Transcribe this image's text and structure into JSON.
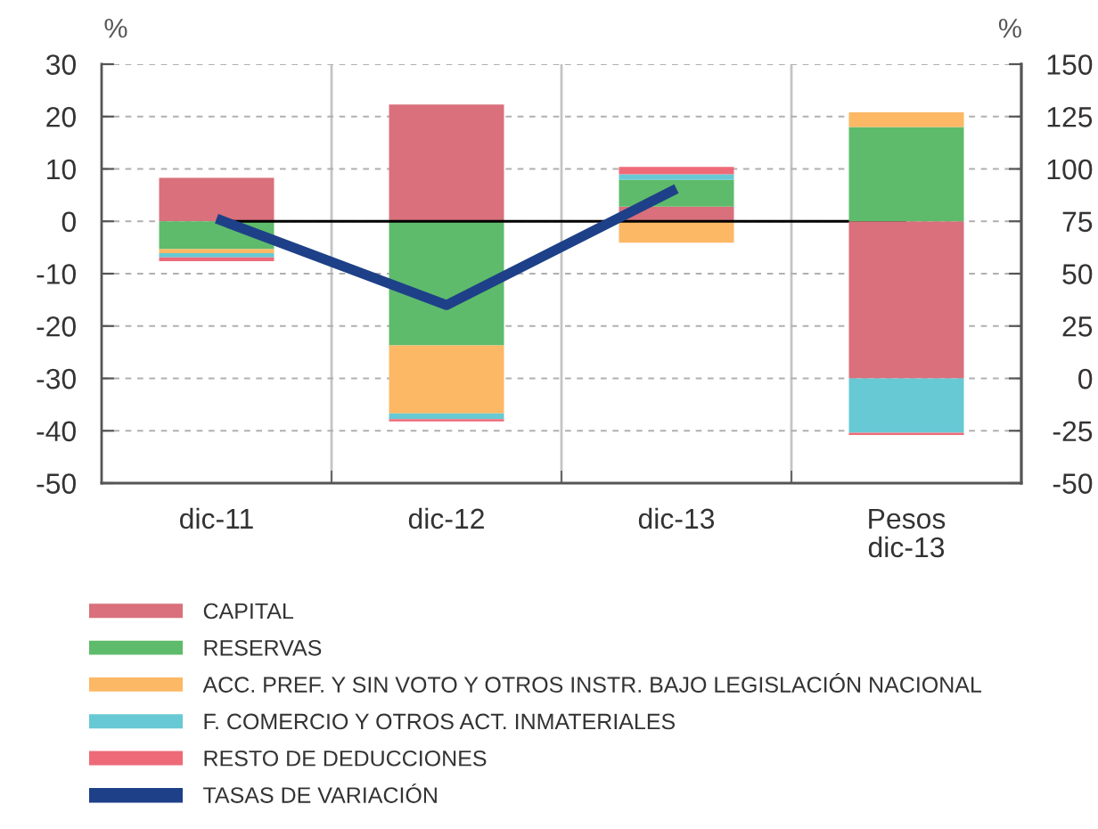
{
  "chart_data": {
    "type": "bar",
    "categories": [
      "dic-11",
      "dic-12",
      "dic-13",
      "Pesos\ndic-13"
    ],
    "stacked": true,
    "series": [
      {
        "name": "CAPITAL",
        "color": "#d9707c",
        "values": [
          8.3,
          22.3,
          2.8,
          null
        ]
      },
      {
        "name": "RESERVAS",
        "color": "#5ebb6b",
        "values": [
          -5.3,
          -23.7,
          5.1,
          null
        ]
      },
      {
        "name": "ACC. PREF. Y SIN VOTO Y OTROS INSTR. BAJO LEGISLACIÓN NACIONAL",
        "color": "#fcb865",
        "values": [
          -0.8,
          -13.0,
          -4.1,
          null
        ]
      },
      {
        "name": "F. COMERCIO Y OTROS ACT. INMATERIALES",
        "color": "#67c9d4",
        "values": [
          -0.8,
          -1.1,
          1.1,
          null
        ]
      },
      {
        "name": "RESTO DE DEDUCCIONES",
        "color": "#ee6a78",
        "values": [
          -0.7,
          -0.4,
          1.4,
          null
        ]
      },
      {
        "color": "#d9707c",
        "axis": "y2",
        "values": [
          null,
          null,
          null,
          75
        ]
      },
      {
        "color": "#5ebb6b",
        "axis": "y2",
        "values": [
          null,
          null,
          null,
          45
        ]
      },
      {
        "color": "#fcb865",
        "axis": "y2",
        "values": [
          null,
          null,
          null,
          7
        ]
      },
      {
        "color": "#67c9d4",
        "axis": "y2",
        "values": [
          null,
          null,
          null,
          -26
        ]
      },
      {
        "color": "#ee6a78",
        "axis": "y2",
        "values": [
          null,
          null,
          null,
          -1
        ]
      },
      {
        "name": "TASAS DE VARIACIÓN",
        "type": "line",
        "color": "#1e4088",
        "values": [
          0.5,
          -16.0,
          6.2,
          null
        ]
      }
    ],
    "ylabel": "%",
    "y2label": "%",
    "ylim": [
      -50,
      30
    ],
    "yticks": [
      -50,
      -40,
      -30,
      -20,
      -10,
      0,
      10,
      20,
      30
    ],
    "y2lim": [
      -50,
      150
    ],
    "y2ticks": [
      -50,
      -25,
      0,
      25,
      50,
      75,
      100,
      125,
      150
    ],
    "grid": true,
    "legend": "bottom",
    "ref_lines": [
      {
        "axis": "y",
        "value": 0,
        "color": "#000000"
      }
    ]
  }
}
